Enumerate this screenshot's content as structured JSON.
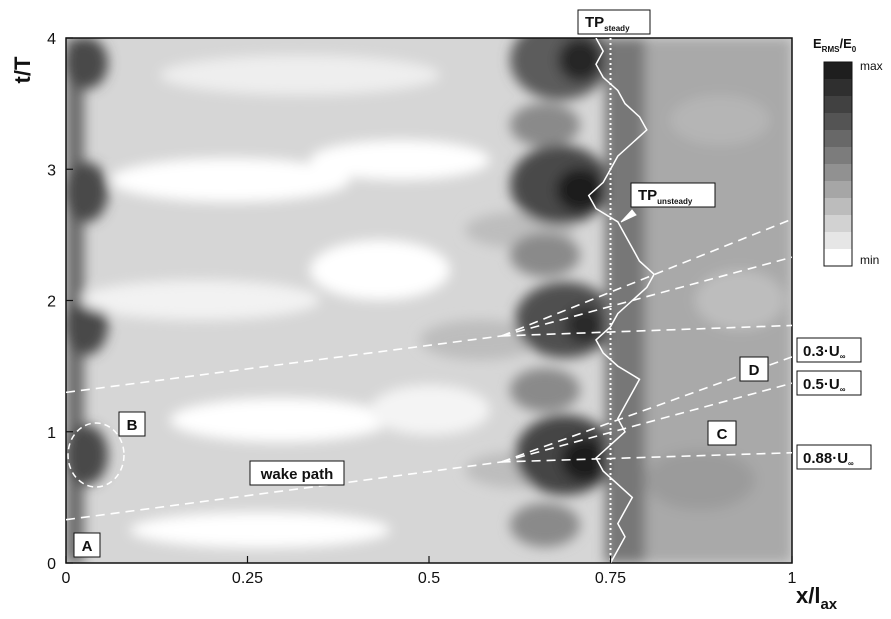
{
  "chart_data": {
    "type": "heatmap",
    "title": "",
    "xlabel": {
      "main": "x/l",
      "sub": "ax"
    },
    "ylabel": "t/T",
    "xlim": [
      0,
      1
    ],
    "ylim": [
      0,
      4
    ],
    "x_ticks": [
      {
        "value": 0,
        "label": "0"
      },
      {
        "value": 0.25,
        "label": "0.25"
      },
      {
        "value": 0.5,
        "label": "0.5"
      },
      {
        "value": 0.75,
        "label": "0.75"
      },
      {
        "value": 1,
        "label": "1"
      }
    ],
    "y_ticks": [
      {
        "value": 0,
        "label": "0"
      },
      {
        "value": 1,
        "label": "1"
      },
      {
        "value": 2,
        "label": "2"
      },
      {
        "value": 3,
        "label": "3"
      },
      {
        "value": 4,
        "label": "4"
      }
    ],
    "colorbar": {
      "title": {
        "main": "E",
        "sub1": "RMS",
        "mid": "/E",
        "sub2": "0"
      },
      "max_label": "max",
      "min_label": "min",
      "colors": [
        "#1e1e1e",
        "#2f2f2f",
        "#414141",
        "#545454",
        "#686868",
        "#7c7c7c",
        "#919191",
        "#a6a6a6",
        "#bcbcbc",
        "#d2d2d2",
        "#e6e6e6",
        "#ffffff"
      ]
    },
    "transition_steady": {
      "x": 0.75,
      "label": {
        "main": "TP",
        "sub": "steady"
      }
    },
    "transition_unsteady": {
      "label": {
        "main": "TP",
        "sub": "unsteady"
      },
      "points": [
        [
          0.75,
          0.0
        ],
        [
          0.76,
          0.1
        ],
        [
          0.77,
          0.2
        ],
        [
          0.76,
          0.3
        ],
        [
          0.77,
          0.4
        ],
        [
          0.78,
          0.5
        ],
        [
          0.76,
          0.6
        ],
        [
          0.74,
          0.7
        ],
        [
          0.73,
          0.8
        ],
        [
          0.75,
          0.9
        ],
        [
          0.77,
          1.0
        ],
        [
          0.76,
          1.1
        ],
        [
          0.77,
          1.2
        ],
        [
          0.78,
          1.3
        ],
        [
          0.79,
          1.4
        ],
        [
          0.76,
          1.5
        ],
        [
          0.74,
          1.6
        ],
        [
          0.73,
          1.7
        ],
        [
          0.75,
          1.8
        ],
        [
          0.76,
          1.9
        ],
        [
          0.78,
          2.0
        ],
        [
          0.8,
          2.1
        ],
        [
          0.81,
          2.2
        ],
        [
          0.79,
          2.3
        ],
        [
          0.78,
          2.4
        ],
        [
          0.77,
          2.5
        ],
        [
          0.76,
          2.6
        ],
        [
          0.73,
          2.7
        ],
        [
          0.72,
          2.8
        ],
        [
          0.74,
          2.9
        ],
        [
          0.75,
          3.0
        ],
        [
          0.76,
          3.1
        ],
        [
          0.78,
          3.2
        ],
        [
          0.8,
          3.3
        ],
        [
          0.79,
          3.4
        ],
        [
          0.77,
          3.5
        ],
        [
          0.76,
          3.6
        ],
        [
          0.74,
          3.7
        ],
        [
          0.73,
          3.8
        ],
        [
          0.74,
          3.9
        ],
        [
          0.73,
          4.0
        ]
      ]
    },
    "wake_path": {
      "label": "wake path",
      "lines": [
        [
          [
            0.0,
            0.33
          ],
          [
            0.6,
            0.77
          ]
        ],
        [
          [
            0.0,
            1.3
          ],
          [
            0.6,
            1.73
          ]
        ]
      ]
    },
    "speed_rays": [
      {
        "label": {
          "main": "0.88·U",
          "sub": "∞"
        },
        "lines": [
          [
            [
              0.6,
              0.77
            ],
            [
              1.0,
              0.84
            ]
          ],
          [
            [
              0.6,
              1.73
            ],
            [
              1.0,
              1.81
            ]
          ]
        ]
      },
      {
        "label": {
          "main": "0.5·U",
          "sub": "∞"
        },
        "lines": [
          [
            [
              0.6,
              0.77
            ],
            [
              1.0,
              1.37
            ]
          ],
          [
            [
              0.6,
              1.73
            ],
            [
              1.0,
              2.33
            ]
          ]
        ]
      },
      {
        "label": {
          "main": "0.3·U",
          "sub": "∞"
        },
        "lines": [
          [
            [
              0.6,
              0.77
            ],
            [
              1.0,
              1.57
            ]
          ],
          [
            [
              0.6,
              1.73
            ],
            [
              1.0,
              2.62
            ]
          ]
        ]
      }
    ],
    "region_labels": [
      {
        "id": "A",
        "text": "A"
      },
      {
        "id": "B",
        "text": "B"
      },
      {
        "id": "C",
        "text": "C"
      },
      {
        "id": "D",
        "text": "D"
      }
    ],
    "grid": false,
    "legend": "right"
  }
}
